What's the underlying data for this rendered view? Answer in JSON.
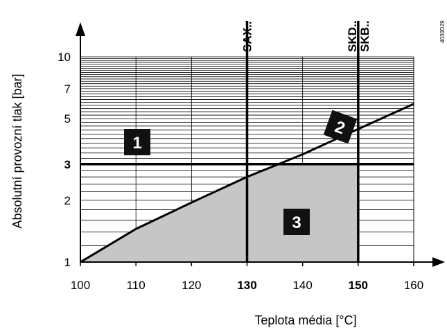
{
  "chart_data": {
    "type": "line",
    "xlabel": "Teplota média [°C]",
    "ylabel": "Absolutní provozní tlak [bar]",
    "xlim": [
      100,
      160
    ],
    "ylim": [
      1,
      10
    ],
    "y_scale": "log",
    "x_ticks": [
      "100",
      "110",
      "120",
      "130",
      "140",
      "150",
      "160"
    ],
    "x_ticks_bold": [
      "130",
      "150"
    ],
    "y_ticks": [
      "1",
      "2",
      "3",
      "5",
      "7",
      "10"
    ],
    "y_ticks_bold": [
      "3"
    ],
    "grid": true,
    "series": [
      {
        "x": [
          100,
          110,
          120,
          130,
          140,
          150,
          160
        ],
        "y": [
          1.0,
          1.45,
          1.95,
          2.6,
          3.35,
          4.45,
          5.9
        ]
      }
    ],
    "reference_lines": [
      {
        "orientation": "vertical",
        "x": 130,
        "label": "SAX.."
      },
      {
        "orientation": "vertical",
        "x": 150,
        "label": "SKD..\nSKB.."
      },
      {
        "orientation": "horizontal",
        "y": 3
      }
    ],
    "zones": [
      {
        "label": "1"
      },
      {
        "label": "2"
      },
      {
        "label": "3",
        "shaded": true
      }
    ],
    "doc_code": "4030D29"
  }
}
